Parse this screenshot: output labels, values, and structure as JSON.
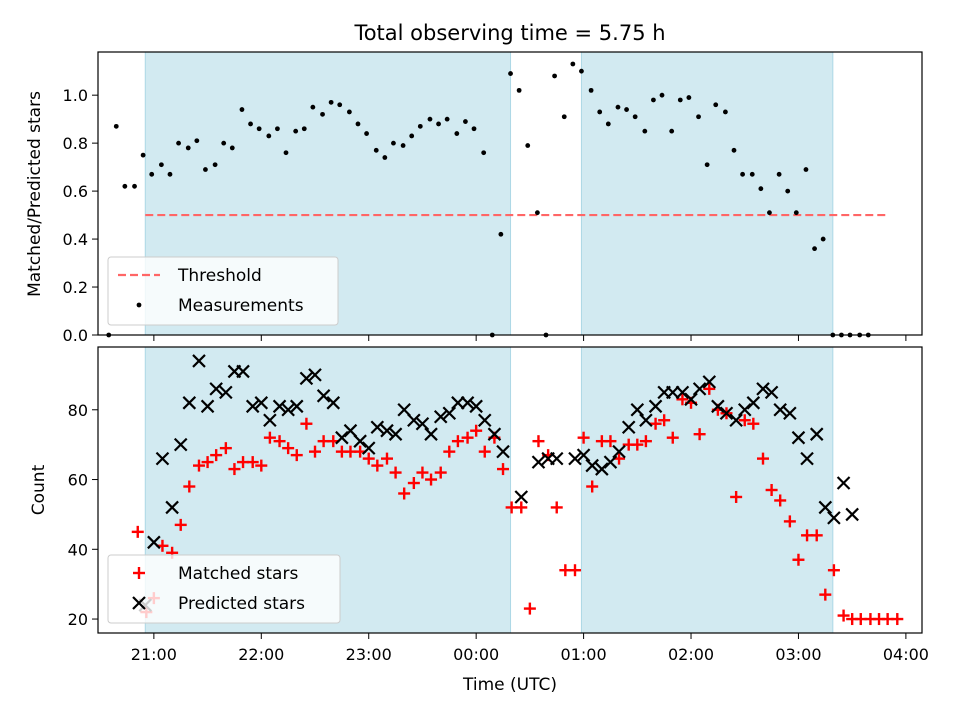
{
  "title": "Total observing time = 5.75 h",
  "chart_data": [
    {
      "type": "scatter",
      "panel": "top",
      "ylabel": "Matched/Predicted stars",
      "ylim": [
        0,
        1.18
      ],
      "yticks": [
        "0.0",
        "0.2",
        "0.4",
        "0.6",
        "0.8",
        "1.0"
      ],
      "threshold": {
        "name": "Threshold",
        "y": 0.5,
        "x_start": 20.92,
        "x_end": 27.83,
        "color": "#ff6666"
      },
      "observing_windows": [
        [
          20.92,
          24.32
        ],
        [
          24.98,
          27.32
        ]
      ],
      "window_color": "#add8e6",
      "legend": {
        "position": "lower-left",
        "entries": [
          "Threshold",
          "Measurements"
        ]
      },
      "series": [
        {
          "name": "Measurements",
          "marker": "dot",
          "color": "#000000",
          "points": [
            [
              20.58,
              0.0
            ],
            [
              20.65,
              0.87
            ],
            [
              20.73,
              0.62
            ],
            [
              20.82,
              0.62
            ],
            [
              20.9,
              0.75
            ],
            [
              20.98,
              0.67
            ],
            [
              21.07,
              0.71
            ],
            [
              21.15,
              0.67
            ],
            [
              21.23,
              0.8
            ],
            [
              21.32,
              0.78
            ],
            [
              21.4,
              0.81
            ],
            [
              21.48,
              0.69
            ],
            [
              21.57,
              0.71
            ],
            [
              21.65,
              0.8
            ],
            [
              21.73,
              0.78
            ],
            [
              21.82,
              0.94
            ],
            [
              21.9,
              0.88
            ],
            [
              21.98,
              0.86
            ],
            [
              22.07,
              0.83
            ],
            [
              22.15,
              0.86
            ],
            [
              22.23,
              0.76
            ],
            [
              22.32,
              0.85
            ],
            [
              22.4,
              0.86
            ],
            [
              22.48,
              0.95
            ],
            [
              22.57,
              0.92
            ],
            [
              22.65,
              0.97
            ],
            [
              22.73,
              0.96
            ],
            [
              22.82,
              0.93
            ],
            [
              22.9,
              0.88
            ],
            [
              22.98,
              0.84
            ],
            [
              23.07,
              0.77
            ],
            [
              23.15,
              0.74
            ],
            [
              23.23,
              0.8
            ],
            [
              23.32,
              0.79
            ],
            [
              23.4,
              0.83
            ],
            [
              23.48,
              0.87
            ],
            [
              23.57,
              0.9
            ],
            [
              23.65,
              0.88
            ],
            [
              23.73,
              0.9
            ],
            [
              23.82,
              0.84
            ],
            [
              23.9,
              0.89
            ],
            [
              23.98,
              0.86
            ],
            [
              24.07,
              0.76
            ],
            [
              24.15,
              0.0
            ],
            [
              24.23,
              0.42
            ],
            [
              24.32,
              1.09
            ],
            [
              24.4,
              1.02
            ],
            [
              24.48,
              0.79
            ],
            [
              24.57,
              0.51
            ],
            [
              24.65,
              0.0
            ],
            [
              24.73,
              1.08
            ],
            [
              24.82,
              0.91
            ],
            [
              24.9,
              1.13
            ],
            [
              24.98,
              1.1
            ],
            [
              25.07,
              1.02
            ],
            [
              25.15,
              0.93
            ],
            [
              25.23,
              0.88
            ],
            [
              25.32,
              0.95
            ],
            [
              25.4,
              0.94
            ],
            [
              25.48,
              0.91
            ],
            [
              25.57,
              0.85
            ],
            [
              25.65,
              0.98
            ],
            [
              25.73,
              1.0
            ],
            [
              25.82,
              0.85
            ],
            [
              25.9,
              0.98
            ],
            [
              25.98,
              0.99
            ],
            [
              26.07,
              0.91
            ],
            [
              26.15,
              0.71
            ],
            [
              26.23,
              0.96
            ],
            [
              26.32,
              0.93
            ],
            [
              26.4,
              0.77
            ],
            [
              26.48,
              0.67
            ],
            [
              26.57,
              0.67
            ],
            [
              26.65,
              0.61
            ],
            [
              26.73,
              0.51
            ],
            [
              26.82,
              0.67
            ],
            [
              26.9,
              0.6
            ],
            [
              26.98,
              0.51
            ],
            [
              27.07,
              0.69
            ],
            [
              27.15,
              0.36
            ],
            [
              27.23,
              0.4
            ],
            [
              27.32,
              0.0
            ],
            [
              27.4,
              0.0
            ],
            [
              27.48,
              0.0
            ],
            [
              27.57,
              0.0
            ],
            [
              27.65,
              0.0
            ]
          ]
        }
      ]
    },
    {
      "type": "scatter",
      "panel": "bottom",
      "xlabel": "Time (UTC)",
      "ylabel": "Count",
      "ylim": [
        16,
        98
      ],
      "yticks": [
        "20",
        "40",
        "60",
        "80"
      ],
      "xlim": [
        20.48,
        28.15
      ],
      "xtick_labels": [
        "21:00",
        "22:00",
        "23:00",
        "00:00",
        "01:00",
        "02:00",
        "03:00",
        "04:00"
      ],
      "observing_windows": [
        [
          20.92,
          24.32
        ],
        [
          24.98,
          27.32
        ]
      ],
      "legend": {
        "position": "lower-left",
        "entries": [
          "Matched stars",
          "Predicted stars"
        ]
      },
      "series": [
        {
          "name": "Matched stars",
          "marker": "plus",
          "color": "#ff0000",
          "points": [
            [
              20.85,
              45
            ],
            [
              20.93,
              22
            ],
            [
              21.0,
              26
            ],
            [
              21.08,
              41
            ],
            [
              21.17,
              39
            ],
            [
              21.25,
              47
            ],
            [
              21.33,
              58
            ],
            [
              21.42,
              64
            ],
            [
              21.5,
              65
            ],
            [
              21.58,
              67
            ],
            [
              21.67,
              69
            ],
            [
              21.75,
              63
            ],
            [
              21.83,
              65
            ],
            [
              21.92,
              65
            ],
            [
              22.0,
              64
            ],
            [
              22.08,
              72
            ],
            [
              22.17,
              71
            ],
            [
              22.25,
              69
            ],
            [
              22.33,
              67
            ],
            [
              22.42,
              76
            ],
            [
              22.5,
              68
            ],
            [
              22.58,
              71
            ],
            [
              22.67,
              71
            ],
            [
              22.75,
              68
            ],
            [
              22.83,
              68
            ],
            [
              22.92,
              68
            ],
            [
              23.0,
              66
            ],
            [
              23.08,
              64
            ],
            [
              23.17,
              66
            ],
            [
              23.25,
              62
            ],
            [
              23.33,
              56
            ],
            [
              23.42,
              59
            ],
            [
              23.5,
              62
            ],
            [
              23.58,
              60
            ],
            [
              23.67,
              62
            ],
            [
              23.75,
              68
            ],
            [
              23.83,
              71
            ],
            [
              23.92,
              72
            ],
            [
              24.0,
              74
            ],
            [
              24.08,
              68
            ],
            [
              24.17,
              72
            ],
            [
              24.25,
              63
            ],
            [
              24.33,
              52
            ],
            [
              24.42,
              52
            ],
            [
              24.5,
              23
            ],
            [
              24.58,
              71
            ],
            [
              24.67,
              67
            ],
            [
              24.75,
              52
            ],
            [
              24.83,
              34
            ],
            [
              24.92,
              34
            ],
            [
              25.0,
              72
            ],
            [
              25.08,
              58
            ],
            [
              25.17,
              71
            ],
            [
              25.25,
              71
            ],
            [
              25.33,
              66
            ],
            [
              25.42,
              70
            ],
            [
              25.5,
              70
            ],
            [
              25.58,
              71
            ],
            [
              25.67,
              76
            ],
            [
              25.75,
              77
            ],
            [
              25.83,
              72
            ],
            [
              25.92,
              83
            ],
            [
              26.0,
              82
            ],
            [
              26.08,
              73
            ],
            [
              26.17,
              86
            ],
            [
              26.25,
              80
            ],
            [
              26.33,
              79
            ],
            [
              26.42,
              55
            ],
            [
              26.5,
              77
            ],
            [
              26.58,
              76
            ],
            [
              26.67,
              66
            ],
            [
              26.75,
              57
            ],
            [
              26.83,
              54
            ],
            [
              26.92,
              48
            ],
            [
              27.0,
              37
            ],
            [
              27.08,
              44
            ],
            [
              27.17,
              44
            ],
            [
              27.25,
              27
            ],
            [
              27.33,
              34
            ],
            [
              27.42,
              21
            ],
            [
              27.5,
              20
            ],
            [
              27.58,
              20
            ],
            [
              27.67,
              20
            ],
            [
              27.75,
              20
            ],
            [
              27.83,
              20
            ],
            [
              27.92,
              20
            ]
          ]
        },
        {
          "name": "Predicted stars",
          "marker": "x",
          "color": "#000000",
          "points": [
            [
              20.92,
              24
            ],
            [
              21.0,
              42
            ],
            [
              21.08,
              66
            ],
            [
              21.17,
              52
            ],
            [
              21.25,
              70
            ],
            [
              21.33,
              82
            ],
            [
              21.42,
              94
            ],
            [
              21.5,
              81
            ],
            [
              21.58,
              86
            ],
            [
              21.67,
              85
            ],
            [
              21.75,
              91
            ],
            [
              21.83,
              91
            ],
            [
              21.92,
              81
            ],
            [
              22.0,
              82
            ],
            [
              22.08,
              77
            ],
            [
              22.17,
              81
            ],
            [
              22.25,
              80
            ],
            [
              22.33,
              81
            ],
            [
              22.42,
              89
            ],
            [
              22.5,
              90
            ],
            [
              22.58,
              84
            ],
            [
              22.67,
              82
            ],
            [
              22.75,
              72
            ],
            [
              22.83,
              74
            ],
            [
              22.92,
              71
            ],
            [
              23.0,
              69
            ],
            [
              23.08,
              75
            ],
            [
              23.17,
              74
            ],
            [
              23.25,
              73
            ],
            [
              23.33,
              80
            ],
            [
              23.42,
              77
            ],
            [
              23.5,
              76
            ],
            [
              23.58,
              73
            ],
            [
              23.67,
              78
            ],
            [
              23.75,
              79
            ],
            [
              23.83,
              82
            ],
            [
              23.92,
              82
            ],
            [
              24.0,
              81
            ],
            [
              24.08,
              77
            ],
            [
              24.17,
              73
            ],
            [
              24.25,
              68
            ],
            [
              24.42,
              55
            ],
            [
              24.58,
              65
            ],
            [
              24.67,
              66
            ],
            [
              24.75,
              66
            ],
            [
              24.92,
              66
            ],
            [
              25.0,
              67
            ],
            [
              25.08,
              64
            ],
            [
              25.17,
              63
            ],
            [
              25.25,
              65
            ],
            [
              25.33,
              68
            ],
            [
              25.42,
              75
            ],
            [
              25.5,
              80
            ],
            [
              25.58,
              77
            ],
            [
              25.67,
              81
            ],
            [
              25.75,
              85
            ],
            [
              25.83,
              85
            ],
            [
              25.92,
              85
            ],
            [
              26.0,
              83
            ],
            [
              26.08,
              86
            ],
            [
              26.17,
              88
            ],
            [
              26.25,
              81
            ],
            [
              26.33,
              79
            ],
            [
              26.42,
              77
            ],
            [
              26.5,
              80
            ],
            [
              26.58,
              82
            ],
            [
              26.67,
              86
            ],
            [
              26.75,
              85
            ],
            [
              26.83,
              80
            ],
            [
              26.92,
              79
            ],
            [
              27.0,
              72
            ],
            [
              27.08,
              66
            ],
            [
              27.17,
              73
            ],
            [
              27.25,
              52
            ],
            [
              27.33,
              49
            ],
            [
              27.42,
              59
            ],
            [
              27.5,
              50
            ]
          ]
        }
      ]
    }
  ]
}
